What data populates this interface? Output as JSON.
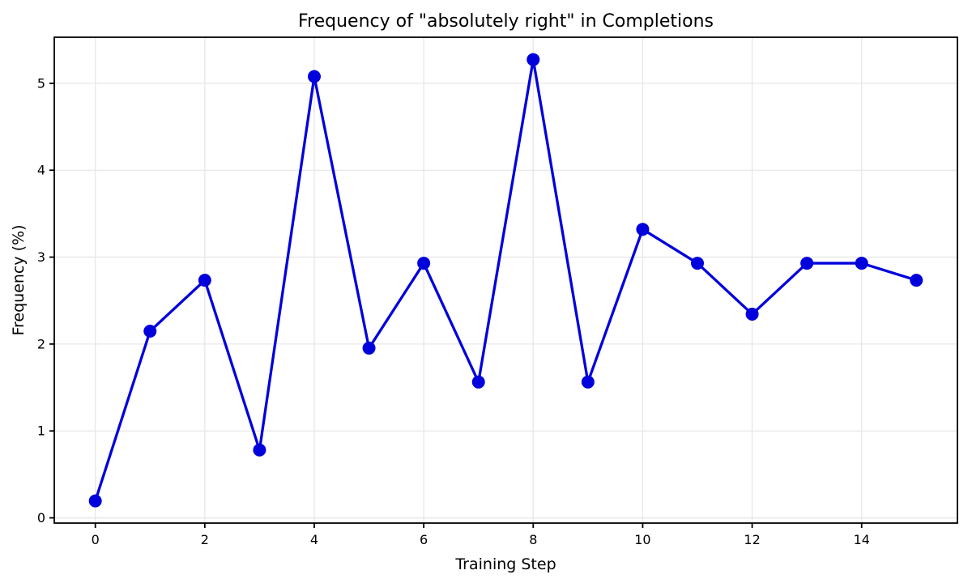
{
  "chart_data": {
    "type": "line",
    "title": "Frequency of \"absolutely right\" in Completions",
    "xlabel": "Training Step",
    "ylabel": "Frequency (%)",
    "x": [
      0,
      1,
      2,
      3,
      4,
      5,
      6,
      7,
      8,
      9,
      10,
      11,
      12,
      13,
      14,
      15
    ],
    "y": [
      0.195,
      2.148,
      2.734,
      0.781,
      5.078,
      1.953,
      2.93,
      1.563,
      5.273,
      1.563,
      3.32,
      2.93,
      2.344,
      2.93,
      2.93,
      2.734
    ],
    "xticks": [
      0,
      2,
      4,
      6,
      8,
      10,
      12,
      14
    ],
    "yticks": [
      0,
      1,
      2,
      3,
      4,
      5
    ],
    "xlim": [
      -0.75,
      15.75
    ],
    "ylim": [
      -0.06,
      5.53
    ],
    "legend": null,
    "grid": true,
    "marker": "circle",
    "colors": {
      "line": "#0000dd",
      "marker": "#0000dd",
      "grid": "#e7e7e7",
      "background": "#ffffff",
      "text": "#000000"
    }
  }
}
